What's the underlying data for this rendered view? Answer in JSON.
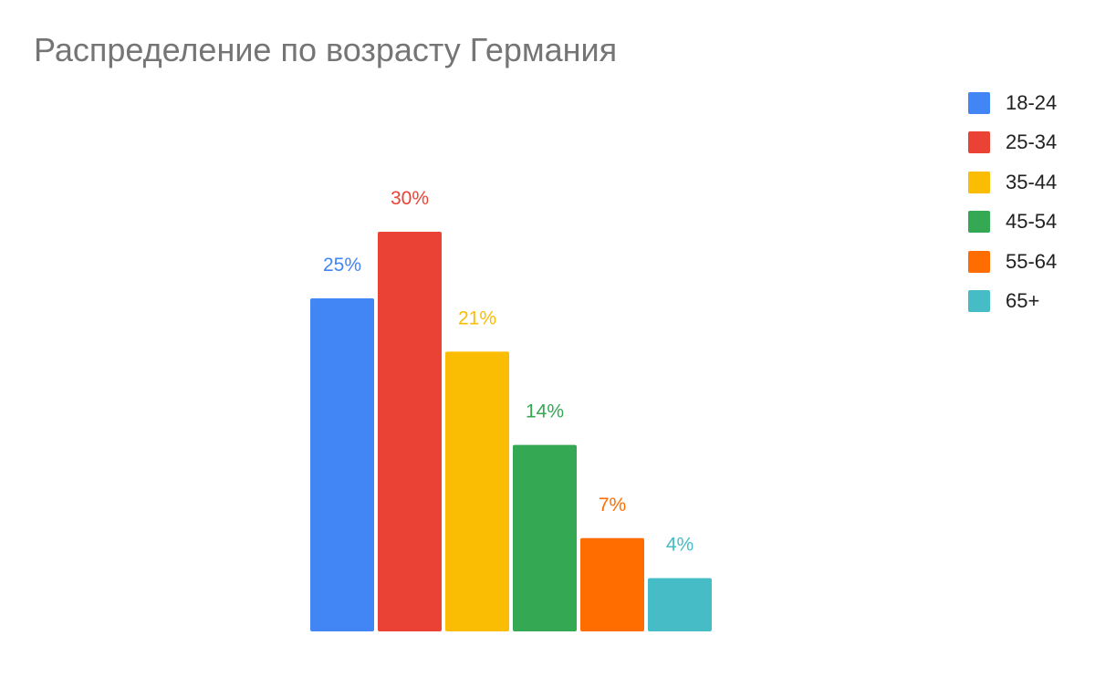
{
  "chart_data": {
    "type": "bar",
    "title": "Распределение по возрасту Германия",
    "categories": [
      "18-24",
      "25-34",
      "35-44",
      "45-54",
      "55-64",
      "65+"
    ],
    "values": [
      25,
      30,
      21,
      14,
      7,
      4
    ],
    "value_labels": [
      "25%",
      "30%",
      "21%",
      "14%",
      "7%",
      "4%"
    ],
    "unit": "%",
    "colors": [
      "#4285F4",
      "#EA4335",
      "#FBBC04",
      "#34A853",
      "#FF6D01",
      "#46BDC6"
    ],
    "ylim": [
      0,
      30
    ],
    "grid": false,
    "legend_position": "top-right",
    "xlabel": "",
    "ylabel": ""
  }
}
